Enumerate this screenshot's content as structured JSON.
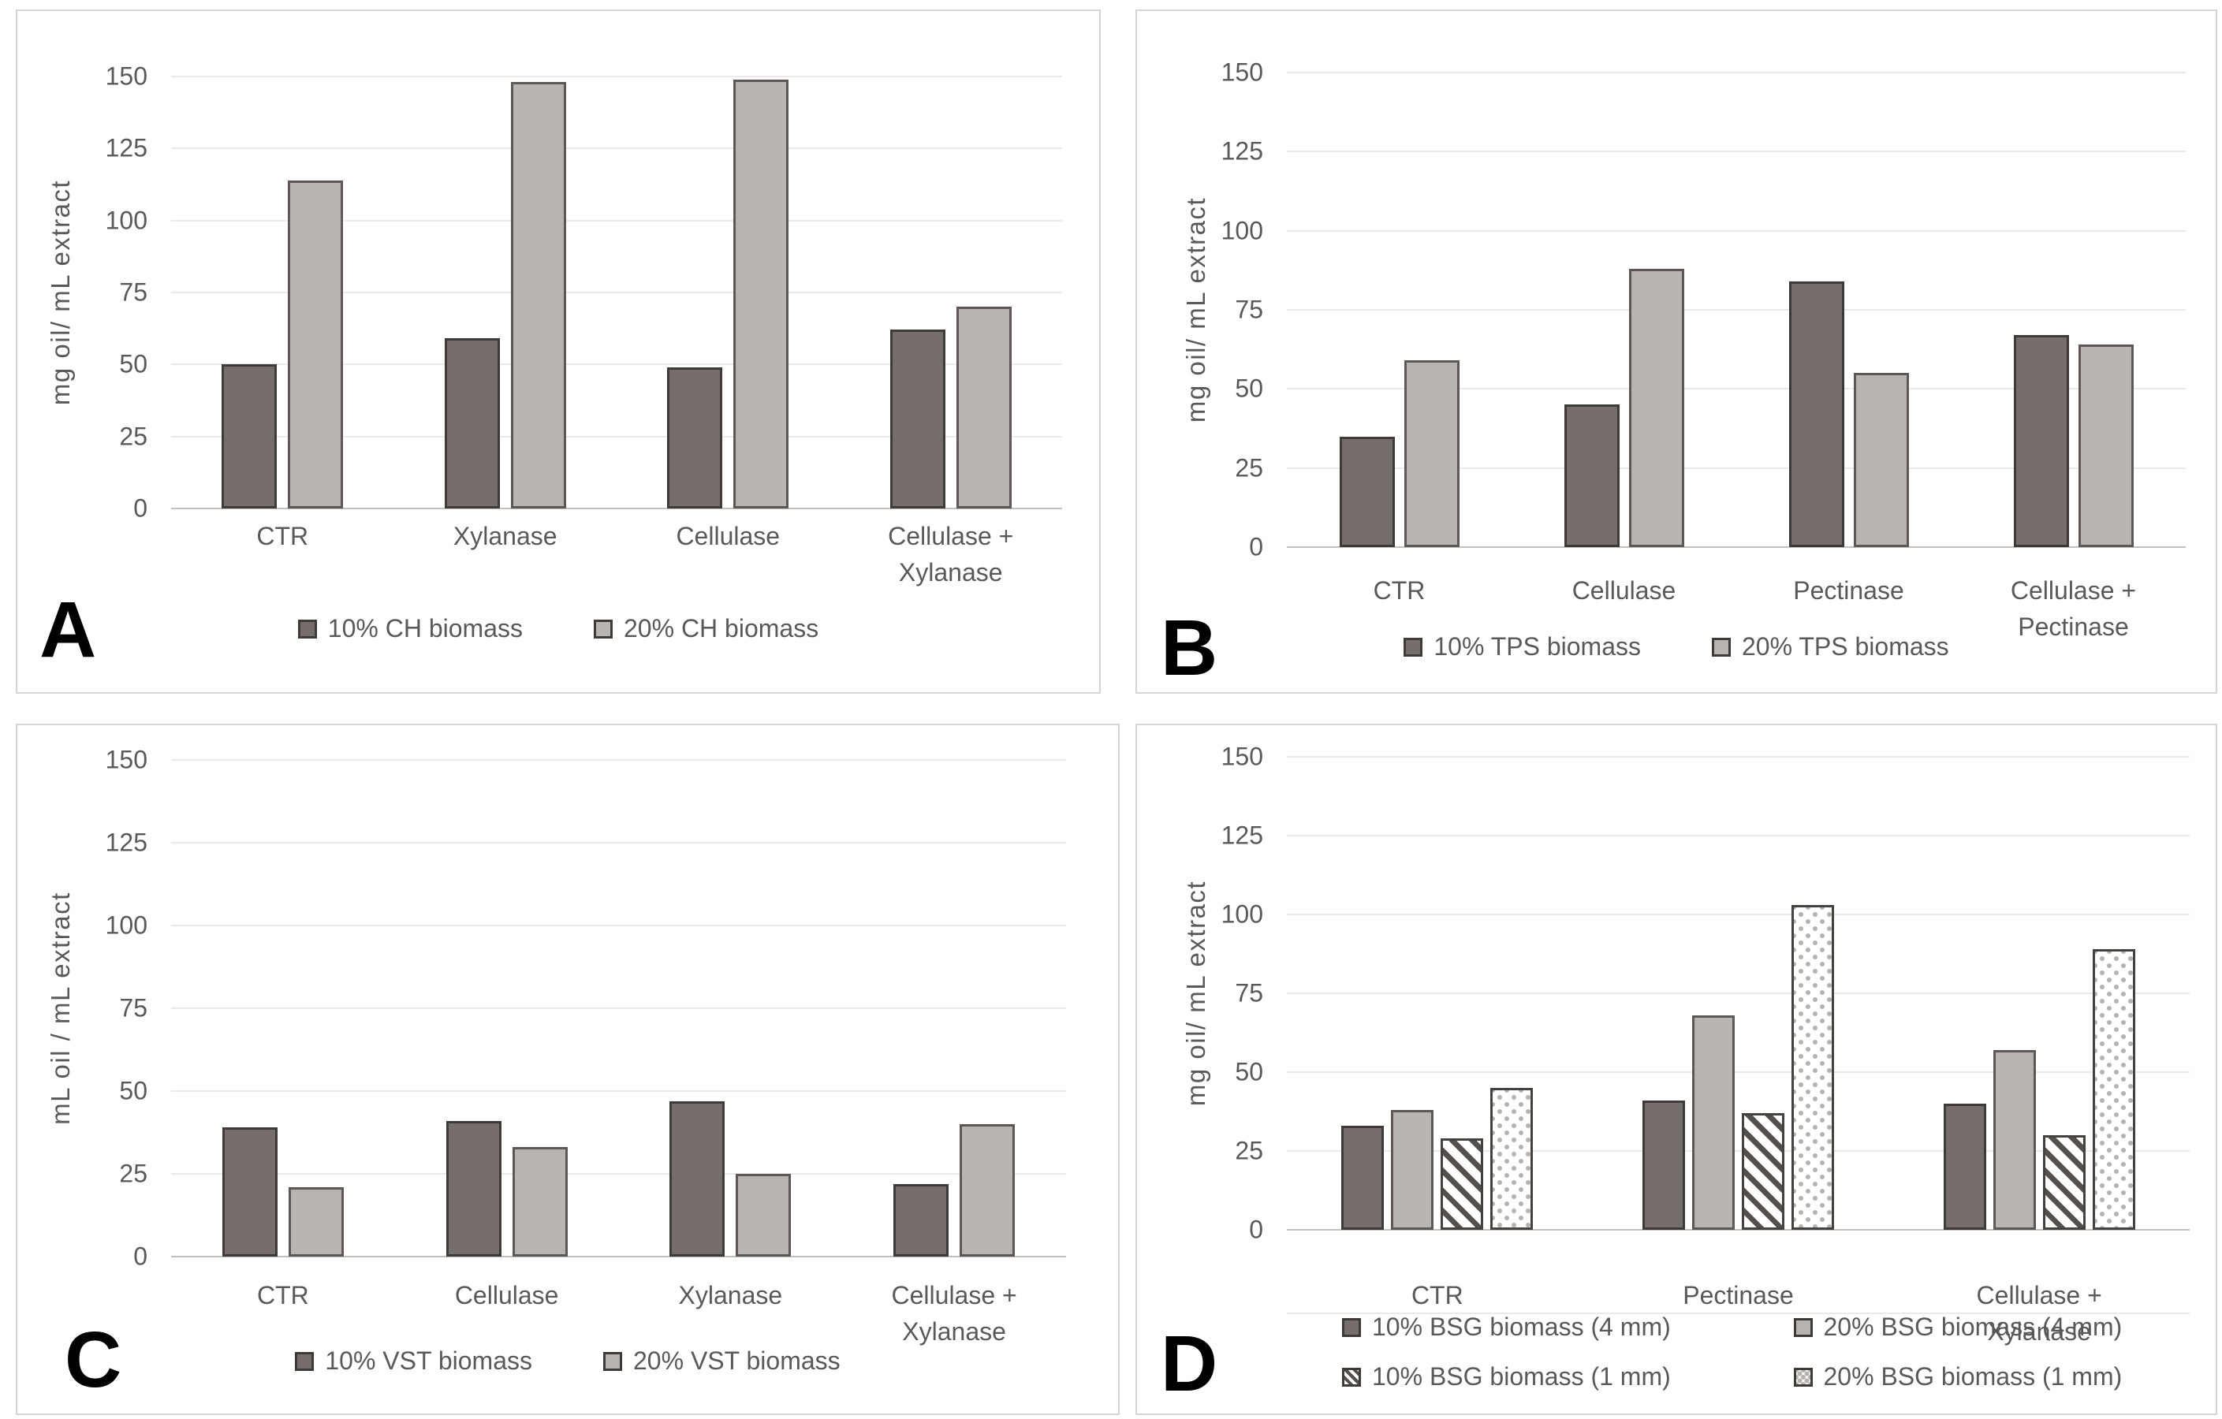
{
  "figure": {
    "background": "#ffffff",
    "panel_border_color": "#d7d4d2",
    "gridline_color": "#eceae8",
    "axis_line_color": "#c3c0be",
    "text_color": "#595959",
    "panel_letter_color": "#000000"
  },
  "styles": {
    "dark": {
      "fill": "#756e6a",
      "border": "#3e3a38",
      "pattern": "solid"
    },
    "light": {
      "fill": "#b9b4b0",
      "border": "#5d5855",
      "pattern": "solid"
    },
    "hatch": {
      "fill": "#ffffff",
      "border": "#45413f",
      "pattern": "diagonal-stripes",
      "stripe_color": "#55504d"
    },
    "dot": {
      "fill": "#ffffff",
      "border": "#45413f",
      "pattern": "dots",
      "dot_color": "#b5b1ae"
    }
  },
  "chart_data": [
    {
      "type": "bar",
      "panel_label": "A",
      "ylabel": "mg oil/ mL extract",
      "xlabel": "",
      "ylim": [
        0,
        150
      ],
      "yticks": [
        0,
        25,
        50,
        75,
        100,
        125,
        150
      ],
      "grid": true,
      "legend_position": "bottom",
      "categories": [
        [
          "CTR"
        ],
        [
          "Xylanase"
        ],
        [
          "Cellulase"
        ],
        [
          "Cellulase +",
          "Xylanase"
        ]
      ],
      "series": [
        {
          "name": "10% CH biomass",
          "style": "dark",
          "values": [
            50,
            59,
            49,
            62
          ]
        },
        {
          "name": "20% CH biomass",
          "style": "light",
          "values": [
            114,
            148,
            149,
            70
          ]
        }
      ]
    },
    {
      "type": "bar",
      "panel_label": "B",
      "ylabel": "mg oil/ mL extract",
      "xlabel": "",
      "ylim": [
        0,
        150
      ],
      "yticks": [
        0,
        25,
        50,
        75,
        100,
        125,
        150
      ],
      "grid": true,
      "legend_position": "bottom",
      "categories": [
        [
          "CTR"
        ],
        [
          "Cellulase"
        ],
        [
          "Pectinase"
        ],
        [
          "Cellulase + Pectinase"
        ]
      ],
      "series": [
        {
          "name": "10% TPS biomass",
          "style": "dark",
          "values": [
            35,
            45,
            84,
            67
          ]
        },
        {
          "name": "20% TPS biomass",
          "style": "light",
          "values": [
            59,
            88,
            55,
            64
          ]
        }
      ]
    },
    {
      "type": "bar",
      "panel_label": "C",
      "ylabel": "mL oil / mL extract",
      "xlabel": "",
      "ylim": [
        0,
        150
      ],
      "yticks": [
        0,
        25,
        50,
        75,
        100,
        125,
        150
      ],
      "grid": true,
      "legend_position": "bottom",
      "categories": [
        [
          "CTR"
        ],
        [
          "Cellulase"
        ],
        [
          "Xylanase"
        ],
        [
          "Cellulase +",
          "Xylanase"
        ]
      ],
      "series": [
        {
          "name": "10% VST biomass",
          "style": "dark",
          "values": [
            39,
            41,
            47,
            22
          ]
        },
        {
          "name": "20% VST biomass",
          "style": "light",
          "values": [
            21,
            33,
            25,
            40
          ]
        }
      ]
    },
    {
      "type": "bar",
      "panel_label": "D",
      "ylabel": "mg oil/ mL extract",
      "xlabel": "",
      "ylim": [
        0,
        150
      ],
      "yticks": [
        0,
        25,
        50,
        75,
        100,
        125,
        150
      ],
      "grid": true,
      "legend_position": "bottom",
      "categories": [
        [
          "CTR"
        ],
        [
          "Pectinase"
        ],
        [
          "Cellulase + Xylanase"
        ]
      ],
      "series": [
        {
          "name": "10% BSG biomass (4 mm)",
          "style": "dark",
          "values": [
            33,
            41,
            40
          ]
        },
        {
          "name": "20% BSG biomass (4 mm)",
          "style": "light",
          "values": [
            38,
            68,
            57
          ]
        },
        {
          "name": "10% BSG biomass (1 mm)",
          "style": "hatch",
          "values": [
            29,
            37,
            30
          ]
        },
        {
          "name": "20% BSG biomass (1 mm)",
          "style": "dot",
          "values": [
            45,
            103,
            89
          ]
        }
      ]
    }
  ]
}
